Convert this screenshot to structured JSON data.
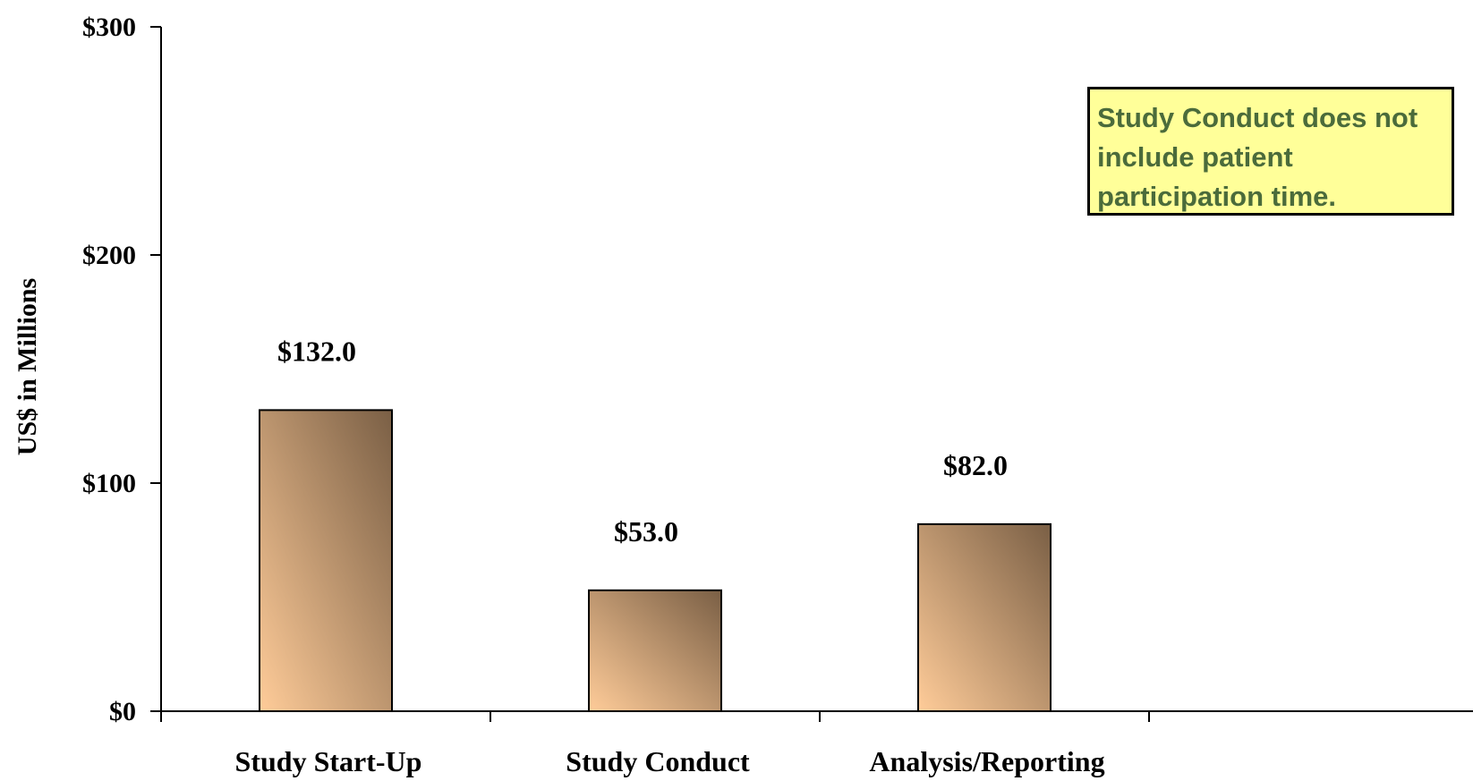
{
  "chart_data": {
    "type": "bar",
    "categories": [
      "Study Start-Up",
      "Study Conduct",
      "Analysis/Reporting"
    ],
    "values": [
      132.0,
      53.0,
      82.0
    ],
    "data_labels": [
      "$132.0",
      "$53.0",
      "$82.0"
    ],
    "title": "",
    "xlabel": "",
    "ylabel": "US$ in Millions",
    "ylim": [
      0,
      300
    ],
    "yticks": [
      0,
      100,
      200,
      300
    ],
    "ytick_labels": [
      "$0",
      "$100",
      "$200",
      "$300"
    ],
    "grid": false,
    "legend": "none",
    "annotation": "Study Conduct does not include patient participation time."
  },
  "colors": {
    "bar_light": "#ffcc99",
    "bar_dark": "#7a5f45",
    "note_background": "#ffff99",
    "note_text": "#4b6b3b",
    "axis": "#000000"
  }
}
